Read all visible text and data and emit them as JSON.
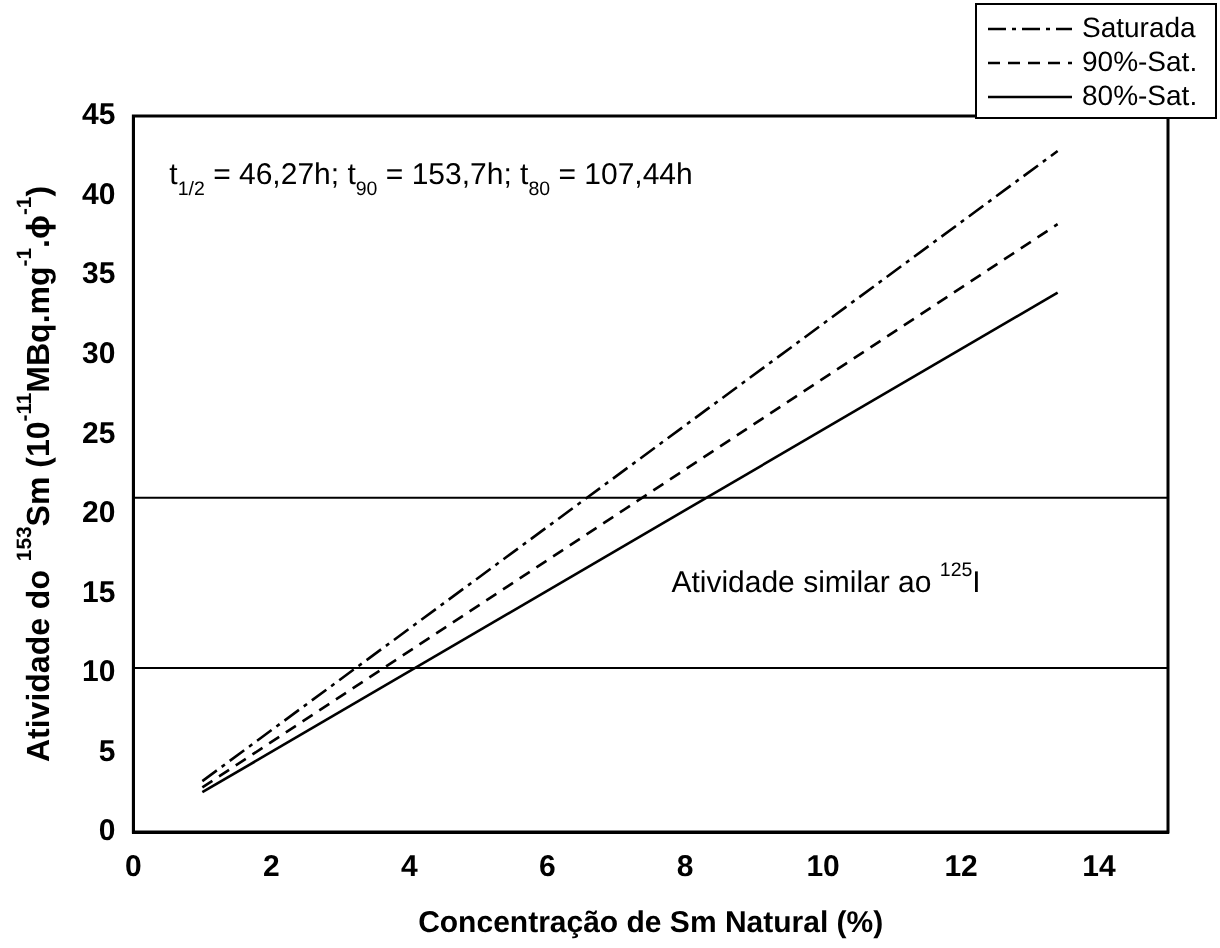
{
  "chart_data": {
    "type": "line",
    "xlabel": "Concentração de Sm Natural (%)",
    "ylabel": "Atividade do $^{153}$Sm (10$^{-11}$MBq.mg$^{-1}$.ϕ$^{-1}$)",
    "x": [
      1,
      13.4
    ],
    "series": [
      {
        "name": "Saturada",
        "color": "#000000",
        "line_style": "dashdot",
        "values": [
          3.2,
          42.8
        ]
      },
      {
        "name": "90%-Sat.",
        "color": "#000000",
        "line_style": "dashed",
        "values": [
          2.8,
          38.2
        ]
      },
      {
        "name": "80%-Sat.",
        "color": "#000000",
        "line_style": "solid",
        "values": [
          2.5,
          33.9
        ]
      }
    ],
    "xlim": [
      0,
      15
    ],
    "xticks": [
      0,
      2,
      4,
      6,
      8,
      10,
      12,
      14
    ],
    "ylim": [
      0,
      45
    ],
    "yticks": [
      0,
      5,
      10,
      15,
      20,
      25,
      30,
      35,
      40,
      45
    ],
    "ref_lines": [
      {
        "axis": "y",
        "value": 21,
        "color": "#000000"
      },
      {
        "axis": "y",
        "value": 10.3,
        "color": "#000000"
      }
    ],
    "annotations": [
      "t$_{1/2}$ = 46,27h; t$_{90}$ = 153,7h; t$_{80}$ = 107,44h",
      "Atividade similar ao $^{125}$I"
    ],
    "grid": false,
    "legend": "top right",
    "marker": "none"
  }
}
